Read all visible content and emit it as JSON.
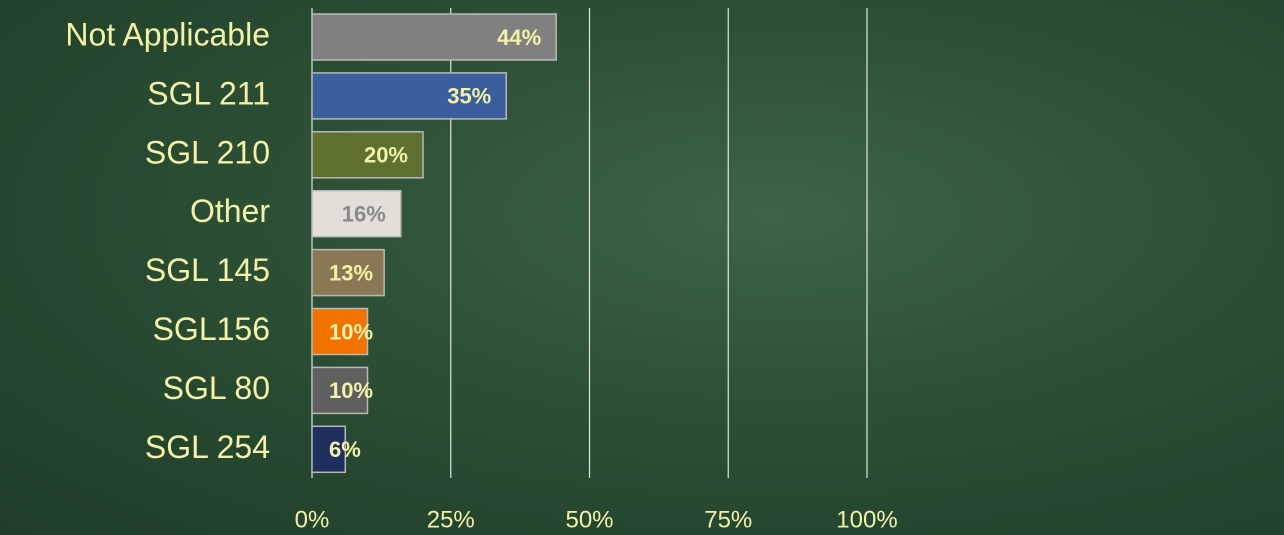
{
  "chart_data": {
    "type": "hbar",
    "categories": [
      "Not Applicable",
      "SGL 211",
      "SGL 210",
      "Other",
      "SGL 145",
      "SGL156",
      "SGL 80",
      "SGL 254"
    ],
    "values": [
      44,
      35,
      20,
      16,
      13,
      10,
      10,
      6
    ],
    "value_labels": [
      "44%",
      "35%",
      "20%",
      "16%",
      "13%",
      "10%",
      "10%",
      "6%"
    ],
    "colors": [
      "#808080",
      "#3b5e9c",
      "#5e7131",
      "#e2ded8",
      "#8a7855",
      "#f07300",
      "#5f5f5f",
      "#1f305e"
    ],
    "value_label_colors": [
      "#f2f2a8",
      "#f2f2a8",
      "#f2f2a8",
      "#8a8a8a",
      "#f2f2a8",
      "#f2f2a8",
      "#f2f2a8",
      "#f2f2a8"
    ],
    "xlim": [
      0,
      100
    ],
    "xticks": [
      {
        "value": 0,
        "label": "0%"
      },
      {
        "value": 25,
        "label": "25%"
      },
      {
        "value": 50,
        "label": "50%"
      },
      {
        "value": 75,
        "label": "75%"
      },
      {
        "value": 100,
        "label": "100%"
      }
    ],
    "grid": true
  }
}
